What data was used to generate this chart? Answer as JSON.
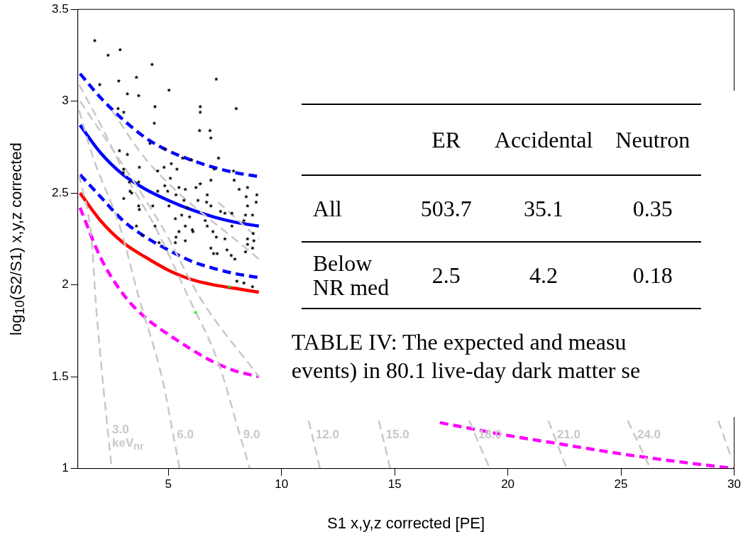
{
  "chart_data": {
    "type": "scatter",
    "xlabel": "S1 x,y,z corrected [PE]",
    "ylabel": "log$_{10}$(S2/S1) x,y,z corrected",
    "xlim": [
      1,
      30
    ],
    "xticks": [
      5,
      10,
      15,
      20,
      25,
      30
    ],
    "ylim": [
      1,
      3.5
    ],
    "yticks": [
      1,
      1.5,
      2,
      2.5,
      3,
      3.5
    ],
    "grid": false,
    "legend": false,
    "series": [
      {
        "type": "line",
        "color": "#c8c8c8",
        "line_style": "dashed",
        "x": [
          1.06,
          1.63,
          1.78,
          2.1,
          2.33,
          2.5
        ],
        "values": [
          2.6,
          2.22,
          1.93,
          1.48,
          1.2,
          1.0
        ]
      },
      {
        "type": "line",
        "color": "#c8c8c8",
        "line_style": "dashed",
        "x": [
          1.06,
          1.63,
          2.9,
          3.7,
          4.75,
          5.19,
          5.5
        ],
        "values": [
          2.95,
          2.71,
          2.3,
          1.93,
          1.48,
          1.2,
          1.0
        ]
      },
      {
        "type": "line",
        "color": "#c8c8c8",
        "line_style": "dashed",
        "x": [
          1.06,
          2.1,
          3.1,
          4.4,
          5.9,
          7.2,
          8.12,
          8.6
        ],
        "values": [
          3.09,
          2.85,
          2.6,
          2.32,
          1.93,
          1.58,
          1.2,
          1.0
        ]
      },
      {
        "type": "line",
        "color": "#c8c8c8",
        "line_style": "dashed",
        "x": [
          1.1,
          2.9,
          4.8,
          6.4,
          9,
          10,
          11.2,
          11.32,
          11.7
        ],
        "values": [
          3.0,
          2.67,
          2.3,
          1.93,
          1.5,
          null,
          1.26,
          1.2,
          1.0
        ]
      },
      {
        "type": "line",
        "color": "#c8c8c8",
        "line_style": "dashed",
        "x": [
          2.5,
          4.1,
          9,
          10,
          14.3,
          14.42,
          14.8
        ],
        "values": [
          2.95,
          2.67,
          2.14,
          null,
          1.26,
          1.2,
          1.0
        ]
      },
      {
        "type": "line",
        "color": "#c8c8c8",
        "line_style": "dashed",
        "x": [
          7.2,
          9,
          10,
          18.3,
          18.5,
          19.2
        ],
        "values": [
          2.45,
          2.25,
          null,
          1.26,
          1.2,
          1.0
        ]
      },
      {
        "type": "line",
        "color": "#c8c8c8",
        "line_style": "dashed",
        "x": [
          21.8,
          21.98,
          22.6
        ],
        "values": [
          1.26,
          1.2,
          1.0
        ]
      },
      {
        "type": "line",
        "color": "#c8c8c8",
        "line_style": "dashed",
        "x": [
          25.3,
          25.53,
          26.3
        ],
        "values": [
          1.26,
          1.2,
          1.0
        ]
      },
      {
        "type": "line",
        "color": "#c8c8c8",
        "line_style": "dashed",
        "x": [
          29.3,
          29.9
        ],
        "values": [
          1.26,
          1.05
        ]
      },
      {
        "type": "line",
        "color": "#0000ff",
        "line_style": "dashed",
        "x": [
          1.1,
          2,
          3,
          4,
          5,
          6,
          7,
          8,
          9
        ],
        "values": [
          3.15,
          3.02,
          2.9,
          2.8,
          2.73,
          2.68,
          2.64,
          2.61,
          2.59
        ]
      },
      {
        "type": "line",
        "color": "#0000ff",
        "line_style": "solid",
        "x": [
          1.1,
          2,
          3,
          4,
          5,
          6,
          7,
          8,
          9
        ],
        "values": [
          2.87,
          2.72,
          2.6,
          2.52,
          2.46,
          2.41,
          2.37,
          2.34,
          2.32
        ]
      },
      {
        "type": "line",
        "color": "#0000ff",
        "line_style": "dashed",
        "x": [
          1.1,
          2,
          3,
          4,
          5,
          6,
          7,
          8,
          9
        ],
        "values": [
          2.6,
          2.48,
          2.35,
          2.26,
          2.19,
          2.13,
          2.09,
          2.06,
          2.04
        ]
      },
      {
        "type": "line",
        "color": "#ff0000",
        "line_style": "solid",
        "x": [
          1.1,
          2,
          3,
          4,
          5,
          6,
          7,
          8,
          9
        ],
        "values": [
          2.5,
          2.35,
          2.23,
          2.15,
          2.08,
          2.03,
          2.0,
          1.98,
          1.96
        ]
      },
      {
        "type": "line",
        "color": "#ff00ff",
        "line_style": "dashed",
        "x": [
          1.1,
          2,
          3,
          4,
          5,
          6,
          7,
          8,
          9,
          13,
          17,
          20,
          22,
          25,
          28,
          30
        ],
        "values": [
          2.42,
          2.15,
          1.95,
          1.82,
          1.73,
          1.65,
          1.58,
          1.53,
          1.5,
          null,
          1.25,
          1.18,
          1.14,
          1.08,
          1.03,
          1.0
        ]
      },
      {
        "type": "scatter",
        "color": "#000000",
        "marker": "star",
        "x": [
          1.75,
          2.34,
          2.87,
          4.28,
          7.12,
          2.81,
          3.59,
          1.97,
          5.03,
          3.19,
          3.69,
          4.41,
          2.78,
          3.03,
          6.41,
          6.41,
          8.0,
          4.38,
          6.38,
          6.84,
          6.88,
          4.19,
          4.84,
          2.84,
          3.19,
          5.63,
          6.03,
          7.22,
          5.13,
          3.72,
          4.53,
          4.81,
          5.38,
          7.03,
          7.88,
          3.03,
          3.0,
          5.09,
          6.88,
          7.91,
          3.28,
          3.69,
          3.31,
          3.38,
          4.53,
          4.84,
          5.47,
          4.97,
          5.75,
          6.22,
          6.41,
          8.13,
          8.5,
          6.72,
          5.34,
          5.69,
          6.31,
          6.69,
          8.44,
          8.91,
          8.88,
          3.03,
          3.69,
          3.72,
          4.31,
          5.03,
          5.84,
          6.88,
          8.5,
          7.31,
          7.5,
          7.81,
          8.41,
          8.72,
          5.59,
          5.94,
          5.31,
          6.63,
          8.34,
          5.75,
          6.72,
          7.81,
          4.41,
          3.59,
          6.06,
          6.09,
          5.47,
          6.97,
          8.75,
          3.84,
          7.12,
          7.5,
          5.34,
          8.5,
          5.75,
          5.31,
          8.78,
          8.5,
          4.59,
          6.88,
          8.72,
          7.0,
          7.16,
          7.59,
          8.41,
          7.78,
          7.94,
          8.03,
          8.34,
          8.72
        ],
        "values": [
          3.33,
          3.25,
          3.28,
          3.2,
          3.12,
          3.11,
          3.13,
          3.09,
          3.06,
          3.04,
          3.03,
          2.97,
          2.96,
          2.94,
          2.97,
          2.94,
          2.96,
          2.88,
          2.84,
          2.84,
          2.8,
          2.77,
          2.74,
          2.73,
          2.71,
          2.69,
          2.68,
          2.69,
          2.66,
          2.64,
          2.62,
          2.64,
          2.63,
          2.63,
          2.62,
          2.63,
          2.61,
          2.58,
          2.57,
          2.57,
          2.56,
          2.56,
          2.51,
          2.5,
          2.51,
          2.54,
          2.53,
          2.51,
          2.52,
          2.53,
          2.55,
          2.52,
          2.53,
          2.49,
          2.49,
          2.46,
          2.46,
          2.45,
          2.48,
          2.49,
          2.45,
          2.47,
          2.43,
          2.41,
          2.43,
          2.43,
          2.42,
          2.43,
          2.43,
          2.4,
          2.39,
          2.39,
          2.38,
          2.38,
          2.38,
          2.37,
          2.36,
          2.35,
          2.35,
          2.32,
          2.32,
          2.32,
          2.32,
          2.32,
          2.3,
          2.29,
          2.29,
          2.29,
          2.28,
          2.27,
          2.26,
          2.25,
          2.26,
          2.25,
          2.24,
          2.23,
          2.24,
          2.22,
          2.23,
          2.2,
          2.2,
          2.17,
          2.17,
          2.19,
          2.18,
          2.16,
          2.14,
          2.02,
          2.01,
          1.99
        ]
      },
      {
        "type": "scatter",
        "color": "#00ff00",
        "marker": "star",
        "x": [
          6.2,
          7.7
        ],
        "values": [
          1.85,
          1.99
        ]
      }
    ],
    "annotations": [
      {
        "text": "3.0 keV$_{nr}$",
        "x": 2.33,
        "y": 1.2
      },
      {
        "text": "6.0",
        "x": 5.19,
        "y": 1.2
      },
      {
        "text": "9.0",
        "x": 8.12,
        "y": 1.2
      },
      {
        "text": "12.0",
        "x": 11.32,
        "y": 1.2
      },
      {
        "text": "15.0",
        "x": 14.42,
        "y": 1.2
      },
      {
        "text": "18.0",
        "x": 18.5,
        "y": 1.2
      },
      {
        "text": "21.0",
        "x": 21.98,
        "y": 1.2
      },
      {
        "text": "24.0",
        "x": 25.53,
        "y": 1.2
      },
      "ER",
      "Accidental",
      "Neutron",
      "All",
      "503.7",
      "35.1",
      "0.35",
      "Below NR med",
      "2.5",
      "4.2",
      "0.18",
      "TABLE IV: The expected and measu",
      "events) in 80.1 live-day dark matter se"
    ]
  }
}
